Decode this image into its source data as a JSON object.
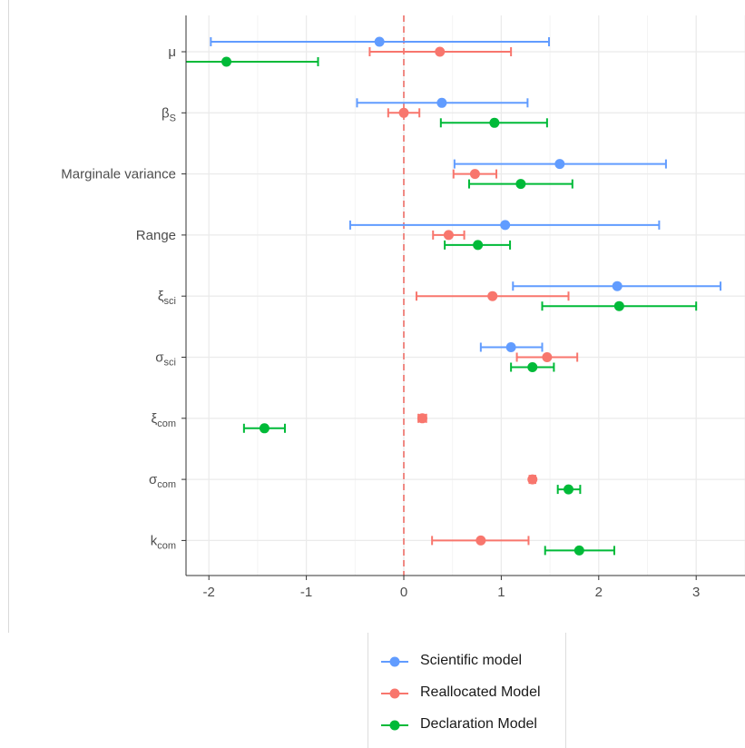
{
  "chart_data": {
    "type": "scatter",
    "subtype": "dot-and-whisker",
    "xlim": [
      -2.22,
      3.52
    ],
    "x_ticks": [
      "-2",
      "-1",
      "0",
      "1",
      "2",
      "3"
    ],
    "x_tick_values": [
      -2,
      -1,
      0,
      1,
      2,
      3
    ],
    "reference_line": {
      "x": 0,
      "style": "dashed",
      "color": "#f08a84"
    },
    "grid": true,
    "legend_placement": "bottom",
    "parameters": [
      {
        "base": "μ",
        "sub": ""
      },
      {
        "base": "β",
        "sub": "S"
      },
      {
        "base": "Marginale variance",
        "sub": ""
      },
      {
        "base": "Range",
        "sub": ""
      },
      {
        "base": "ξ",
        "sub": "sci"
      },
      {
        "base": "σ",
        "sub": "sci"
      },
      {
        "base": "ξ",
        "sub": "com"
      },
      {
        "base": "σ",
        "sub": "com"
      },
      {
        "base": "k",
        "sub": "com"
      }
    ],
    "series": [
      {
        "name": "Scientific model",
        "color": "#619cff",
        "points": [
          {
            "est": -0.25,
            "lo": -1.98,
            "hi": 1.49
          },
          {
            "est": 0.39,
            "lo": -0.48,
            "hi": 1.27
          },
          {
            "est": 1.6,
            "lo": 0.52,
            "hi": 2.69
          },
          {
            "est": 1.04,
            "lo": -0.55,
            "hi": 2.62
          },
          {
            "est": 2.19,
            "lo": 1.12,
            "hi": 3.25
          },
          {
            "est": 1.1,
            "lo": 0.79,
            "hi": 1.42
          },
          null,
          null,
          null
        ]
      },
      {
        "name": "Reallocated Model",
        "color": "#f8766d",
        "points": [
          {
            "est": 0.37,
            "lo": -0.35,
            "hi": 1.1
          },
          {
            "est": 0.0,
            "lo": -0.16,
            "hi": 0.16
          },
          {
            "est": 0.73,
            "lo": 0.51,
            "hi": 0.95
          },
          {
            "est": 0.46,
            "lo": 0.3,
            "hi": 0.62
          },
          {
            "est": 0.91,
            "lo": 0.13,
            "hi": 1.69
          },
          {
            "est": 1.47,
            "lo": 1.16,
            "hi": 1.78
          },
          {
            "est": 0.19,
            "lo": 0.15,
            "hi": 0.23
          },
          {
            "est": 1.32,
            "lo": 1.29,
            "hi": 1.35
          },
          {
            "est": 0.79,
            "lo": 0.29,
            "hi": 1.28
          }
        ]
      },
      {
        "name": "Declaration Model",
        "color": "#00ba38",
        "points": [
          {
            "est": -1.82,
            "lo": -2.8,
            "hi": -0.88
          },
          {
            "est": 0.93,
            "lo": 0.38,
            "hi": 1.47
          },
          {
            "est": 1.2,
            "lo": 0.67,
            "hi": 1.73
          },
          {
            "est": 0.76,
            "lo": 0.42,
            "hi": 1.09
          },
          {
            "est": 2.21,
            "lo": 1.42,
            "hi": 3.0
          },
          {
            "est": 1.32,
            "lo": 1.1,
            "hi": 1.54
          },
          {
            "est": -1.43,
            "lo": -1.64,
            "hi": -1.22
          },
          {
            "est": 1.69,
            "lo": 1.58,
            "hi": 1.81
          },
          {
            "est": 1.8,
            "lo": 1.45,
            "hi": 2.16
          }
        ]
      }
    ]
  }
}
